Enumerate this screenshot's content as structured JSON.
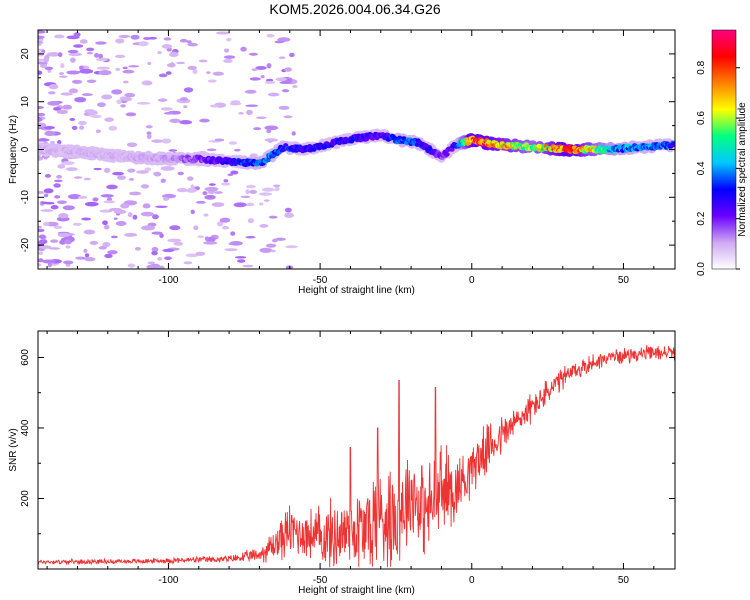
{
  "title": "KOM5.2026.004.06.34.G26",
  "chart_data": [
    {
      "type": "heatmap",
      "name": "spectrogram",
      "xlabel": "Height of straight line (km)",
      "ylabel": "Frequency (Hz)",
      "xlim": [
        -143,
        67
      ],
      "ylim": [
        -25,
        25
      ],
      "xticks": [
        -100,
        -50,
        0,
        50
      ],
      "yticks": [
        -20,
        -10,
        0,
        10,
        20
      ],
      "colorbar": {
        "label": "Normalized spectral amplitude",
        "range": [
          0,
          0.95
        ],
        "ticks": [
          0.0,
          0.2,
          0.4,
          0.6,
          0.8
        ],
        "tick_labels": [
          "0.0",
          "0.2",
          "0.4",
          "0.6",
          "0.8"
        ],
        "colors": [
          "#ffffff",
          "#cfa8f2",
          "#6a00ff",
          "#0000ff",
          "#00c8ff",
          "#00ff80",
          "#ffff00",
          "#ff8000",
          "#ff0000",
          "#ff0080"
        ]
      },
      "ridge": {
        "x": [
          -143,
          -130,
          -115,
          -100,
          -90,
          -80,
          -70,
          -62,
          -55,
          -48,
          -42,
          -36,
          -30,
          -24,
          -18,
          -14,
          -10,
          -5,
          0,
          8,
          20,
          32,
          45,
          55,
          67
        ],
        "freq": [
          0.0,
          -0.5,
          -1.5,
          -2.0,
          -2.0,
          -2.5,
          -3.0,
          0.5,
          0.0,
          1.0,
          2.0,
          2.5,
          3.0,
          2.0,
          1.5,
          0.0,
          -1.5,
          1.0,
          2.0,
          1.0,
          0.5,
          0.0,
          0.0,
          0.5,
          1.0
        ],
        "amplitude": [
          0.1,
          0.1,
          0.1,
          0.12,
          0.2,
          0.3,
          0.4,
          0.35,
          0.3,
          0.3,
          0.3,
          0.3,
          0.25,
          0.4,
          0.35,
          0.3,
          0.2,
          0.3,
          0.9,
          0.8,
          0.6,
          0.9,
          0.5,
          0.4,
          0.35
        ]
      }
    },
    {
      "type": "line",
      "name": "snr",
      "xlabel": "Height of straight line (km)",
      "ylabel": "SNR (v/v)",
      "xlim": [
        -143,
        67
      ],
      "ylim": [
        0,
        675
      ],
      "xticks": [
        -100,
        -50,
        0,
        50
      ],
      "yticks": [
        200,
        400,
        600
      ],
      "color": "#ee3333",
      "envelope": {
        "x": [
          -143,
          -110,
          -80,
          -70,
          -65,
          -60,
          -55,
          -50,
          -45,
          -40,
          -35,
          -30,
          -25,
          -20,
          -15,
          -10,
          -5,
          0,
          5,
          10,
          15,
          20,
          25,
          30,
          35,
          40,
          45,
          50,
          55,
          60,
          67
        ],
        "mean": [
          20,
          22,
          28,
          40,
          70,
          110,
          100,
          90,
          95,
          110,
          110,
          150,
          150,
          220,
          160,
          220,
          230,
          290,
          340,
          380,
          420,
          460,
          500,
          540,
          565,
          585,
          600,
          605,
          610,
          612,
          615
        ],
        "noise": [
          8,
          8,
          12,
          25,
          60,
          90,
          80,
          110,
          120,
          140,
          160,
          200,
          180,
          160,
          150,
          170,
          110,
          90,
          80,
          70,
          55,
          50,
          45,
          40,
          35,
          30,
          25,
          25,
          25,
          25,
          25
        ]
      },
      "spikes": [
        {
          "x": -24,
          "y": 535
        },
        {
          "x": -12,
          "y": 515
        },
        {
          "x": -31,
          "y": 400
        },
        {
          "x": -40,
          "y": 345
        }
      ]
    }
  ]
}
